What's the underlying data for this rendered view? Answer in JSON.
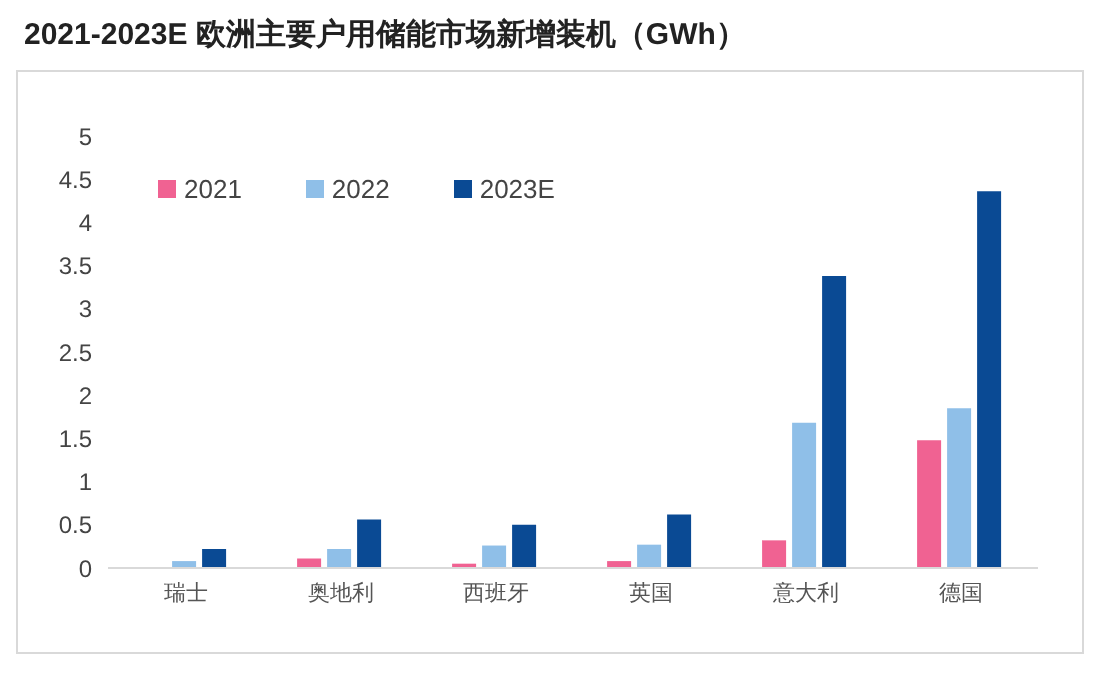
{
  "chart_data": {
    "type": "bar",
    "title": "2021-2023E 欧洲主要户用储能市场新增装机（GWh）",
    "categories": [
      "瑞士",
      "奥地利",
      "西班牙",
      "英国",
      "意大利",
      "德国"
    ],
    "series": [
      {
        "name": "2021",
        "color": "#f06292",
        "values": [
          0,
          0.11,
          0.05,
          0.08,
          0.32,
          1.48
        ]
      },
      {
        "name": "2022",
        "color": "#8fbfe8",
        "values": [
          0.08,
          0.22,
          0.26,
          0.27,
          1.68,
          1.85
        ]
      },
      {
        "name": "2023E",
        "color": "#0a4a94",
        "values": [
          0.22,
          0.56,
          0.5,
          0.62,
          3.38,
          4.36
        ]
      }
    ],
    "ylim": [
      0,
      5
    ],
    "yticks": [
      0,
      0.5,
      1,
      1.5,
      2,
      2.5,
      3,
      3.5,
      4,
      4.5,
      5
    ],
    "grid": false,
    "legend": "top left"
  }
}
